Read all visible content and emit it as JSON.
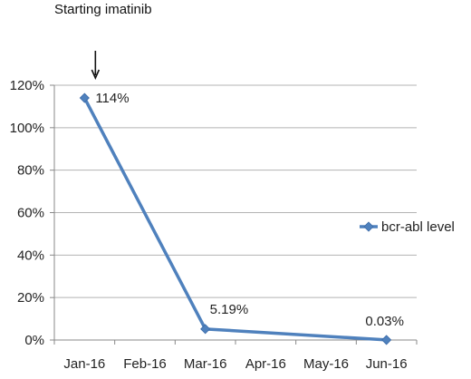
{
  "chart_data": {
    "type": "line",
    "title": "",
    "xlabel": "",
    "ylabel": "",
    "categories": [
      "Jan-16",
      "Feb-16",
      "Mar-16",
      "Apr-16",
      "May-16",
      "Jun-16"
    ],
    "y_tick_labels": [
      "0%",
      "20%",
      "40%",
      "60%",
      "80%",
      "100%",
      "120%"
    ],
    "ylim": [
      0,
      120
    ],
    "y_unit": "%",
    "grid": "horizontal",
    "legend_position": "right",
    "series": [
      {
        "name": "bcr-abl level",
        "color": "#4F81BD",
        "points": [
          {
            "x": "Jan-16",
            "y": 114,
            "label": "114%"
          },
          {
            "x": "Mar-16",
            "y": 5.19,
            "label": "5.19%"
          },
          {
            "x": "Jun-16",
            "y": 0.03,
            "label": "0.03%"
          }
        ]
      }
    ],
    "annotations": [
      {
        "text": "Starting imatinib",
        "x": "Jan-16",
        "arrow": "down"
      }
    ]
  }
}
